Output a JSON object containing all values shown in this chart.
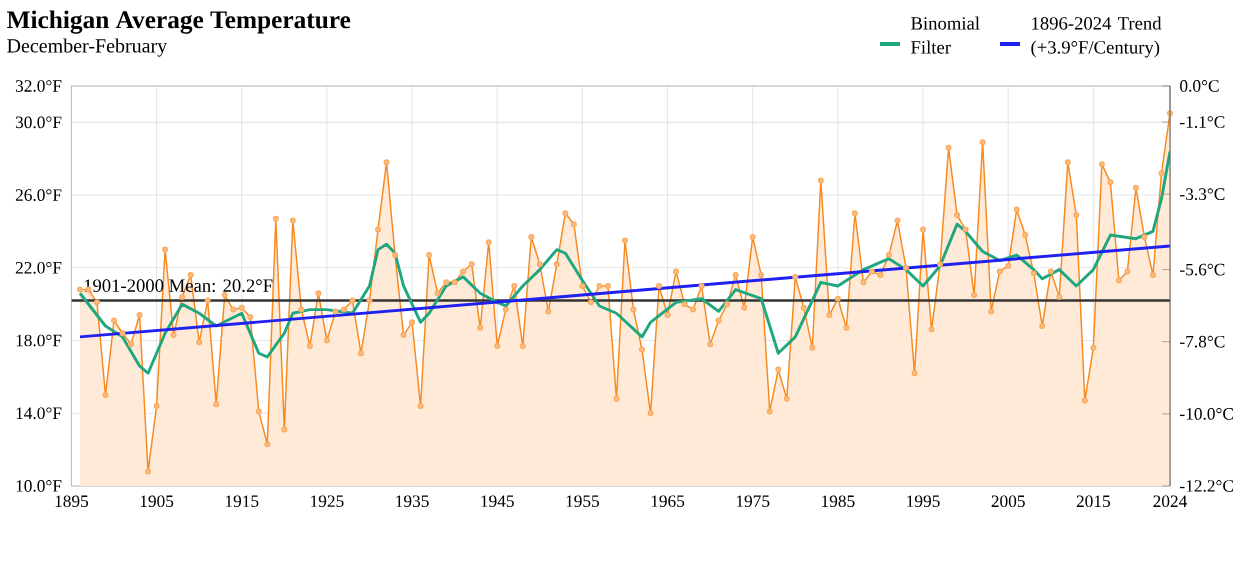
{
  "chart_data": {
    "type": "line",
    "title": "Michigan Average Temperature",
    "subtitle": "December-February",
    "x": [
      1896,
      1897,
      1898,
      1899,
      1900,
      1901,
      1902,
      1903,
      1904,
      1905,
      1906,
      1907,
      1908,
      1909,
      1910,
      1911,
      1912,
      1913,
      1914,
      1915,
      1916,
      1917,
      1918,
      1919,
      1920,
      1921,
      1922,
      1923,
      1924,
      1925,
      1926,
      1927,
      1928,
      1929,
      1930,
      1931,
      1932,
      1933,
      1934,
      1935,
      1936,
      1937,
      1938,
      1939,
      1940,
      1941,
      1942,
      1943,
      1944,
      1945,
      1946,
      1947,
      1948,
      1949,
      1950,
      1951,
      1952,
      1953,
      1954,
      1955,
      1956,
      1957,
      1958,
      1959,
      1960,
      1961,
      1962,
      1963,
      1964,
      1965,
      1966,
      1967,
      1968,
      1969,
      1970,
      1971,
      1972,
      1973,
      1974,
      1975,
      1976,
      1977,
      1978,
      1979,
      1980,
      1981,
      1982,
      1983,
      1984,
      1985,
      1986,
      1987,
      1988,
      1989,
      1990,
      1991,
      1992,
      1993,
      1994,
      1995,
      1996,
      1997,
      1998,
      1999,
      2000,
      2001,
      2002,
      2003,
      2004,
      2005,
      2006,
      2007,
      2008,
      2009,
      2010,
      2011,
      2012,
      2013,
      2014,
      2015,
      2016,
      2017,
      2018,
      2019,
      2020,
      2021,
      2022,
      2023,
      2024
    ],
    "series": [
      {
        "type": "area",
        "color": "#f7891f",
        "marker": "circle",
        "values": [
          20.8,
          20.8,
          20.1,
          15.0,
          19.1,
          18.4,
          17.8,
          19.4,
          10.8,
          14.4,
          23.0,
          18.3,
          20.4,
          21.6,
          17.9,
          20.2,
          14.5,
          20.5,
          19.7,
          19.8,
          19.3,
          14.1,
          12.3,
          24.7,
          13.1,
          24.6,
          19.7,
          17.7,
          20.6,
          18.0,
          19.6,
          19.7,
          20.2,
          17.3,
          20.2,
          24.1,
          27.8,
          22.7,
          18.3,
          19.0,
          14.4,
          22.7,
          20.6,
          21.2,
          21.2,
          21.8,
          22.2,
          18.7,
          23.4,
          17.7,
          19.7,
          21.0,
          17.7,
          23.7,
          22.2,
          19.6,
          22.2,
          25.0,
          24.4,
          21.0,
          20.1,
          21.0,
          21.0,
          14.8,
          23.5,
          19.7,
          17.5,
          14.0,
          21.0,
          19.4,
          21.8,
          20.0,
          19.7,
          21.0,
          17.8,
          19.1,
          20.0,
          21.6,
          19.8,
          23.7,
          21.6,
          14.1,
          16.4,
          14.8,
          21.5,
          19.8,
          17.6,
          26.8,
          19.4,
          20.3,
          18.7,
          25.0,
          21.2,
          21.8,
          21.6,
          22.7,
          24.6,
          22.0,
          16.2,
          24.1,
          18.6,
          22.2,
          28.6,
          24.9,
          24.1,
          20.5,
          28.9,
          19.6,
          21.8,
          22.1,
          25.2,
          23.8,
          21.7,
          18.8,
          21.8,
          20.4,
          27.8,
          24.9,
          14.7,
          17.6,
          27.7,
          26.7,
          21.3,
          21.8,
          26.4,
          23.7,
          21.6,
          27.2,
          30.5
        ]
      },
      {
        "name": "Binomial Filter",
        "color": "#20a780",
        "x": [
          1896,
          1899,
          1901,
          1903,
          1904,
          1906,
          1908,
          1910,
          1912,
          1915,
          1917,
          1918,
          1920,
          1921,
          1923,
          1925,
          1928,
          1930,
          1931,
          1932,
          1933,
          1934,
          1936,
          1937,
          1939,
          1941,
          1943,
          1945,
          1946,
          1948,
          1950,
          1952,
          1953,
          1955,
          1957,
          1959,
          1962,
          1963,
          1966,
          1969,
          1971,
          1973,
          1976,
          1978,
          1980,
          1983,
          1985,
          1988,
          1991,
          1993,
          1995,
          1997,
          1999,
          2000,
          2002,
          2004,
          2006,
          2008,
          2009,
          2011,
          2013,
          2015,
          2017,
          2020,
          2022,
          2023,
          2024
        ],
        "values": [
          20.6,
          18.8,
          18.2,
          16.6,
          16.2,
          18.4,
          20.0,
          19.5,
          18.8,
          19.5,
          17.3,
          17.1,
          18.4,
          19.5,
          19.7,
          19.7,
          19.5,
          21.0,
          23.0,
          23.3,
          22.8,
          21.0,
          19.0,
          19.5,
          21.0,
          21.5,
          20.6,
          20.1,
          19.9,
          21.0,
          21.9,
          23.0,
          22.8,
          21.3,
          19.9,
          19.5,
          18.2,
          19.0,
          20.1,
          20.3,
          19.6,
          20.8,
          20.3,
          17.3,
          18.2,
          21.2,
          21.0,
          21.9,
          22.5,
          21.9,
          21.0,
          22.1,
          24.4,
          24.0,
          22.9,
          22.4,
          22.7,
          21.9,
          21.4,
          21.9,
          21.0,
          21.9,
          23.8,
          23.6,
          24.0,
          25.8,
          28.4
        ]
      },
      {
        "name": "1896-2024 Trend (+3.9°F/Century)",
        "color": "#2020f0",
        "x": [
          1896,
          2024
        ],
        "values": [
          18.2,
          23.2
        ]
      }
    ],
    "xlim": [
      1895,
      2024
    ],
    "xticks": [
      1895,
      1905,
      1915,
      1925,
      1935,
      1945,
      1955,
      1965,
      1975,
      1985,
      1995,
      2005,
      2015,
      2024
    ],
    "ylim": [
      10,
      32
    ],
    "yticks": [
      {
        "value": 10,
        "label": "10.0°F"
      },
      {
        "value": 14,
        "label": "14.0°F"
      },
      {
        "value": 18,
        "label": "18.0°F"
      },
      {
        "value": 22,
        "label": "22.0°F"
      },
      {
        "value": 26,
        "label": "26.0°F"
      },
      {
        "value": 30,
        "label": "30.0°F"
      },
      {
        "value": 32,
        "label": "32.0°F"
      }
    ],
    "y2lim": [
      -12.2,
      0.0
    ],
    "y2ticks": [
      {
        "value": -12.2,
        "label": "-12.2°C"
      },
      {
        "value": -10.0,
        "label": "-10.0°C"
      },
      {
        "value": -7.8,
        "label": "-7.8°C"
      },
      {
        "value": -5.6,
        "label": "-5.6°C"
      },
      {
        "value": -3.3,
        "label": "-3.3°C"
      },
      {
        "value": -1.1,
        "label": "-1.1°C"
      },
      {
        "value": 0.0,
        "label": "0.0°C"
      }
    ],
    "grid": true,
    "legend": "top right",
    "ref_lines": [
      {
        "axis": "y",
        "value": 20.2,
        "label": "1901-2000 Mean: 20.2°F",
        "color": "#333333"
      }
    ]
  }
}
